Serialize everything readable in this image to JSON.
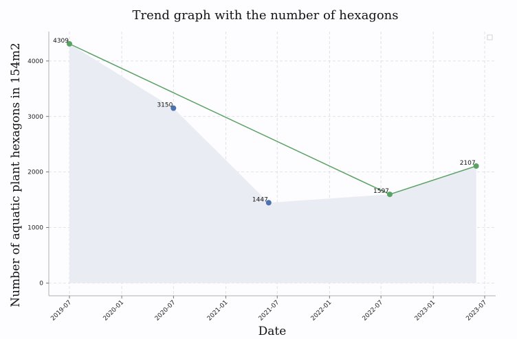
{
  "chart_data": {
    "type": "line",
    "title": "Trend graph with the number of hexagons",
    "xlabel": "Date",
    "ylabel": "Number of aquatic plant hexagons in 154m2",
    "x_tick_labels": [
      "2019-07",
      "2020-01",
      "2020-07",
      "2021-01",
      "2021-07",
      "2022-01",
      "2022-07",
      "2023-01",
      "2023-07"
    ],
    "y_ticks": [
      0,
      1000,
      2000,
      3000,
      4000
    ],
    "ylim": [
      -230,
      4530
    ],
    "grid": true,
    "legend": "top-right (empty)",
    "points": [
      {
        "date": "2019-07-01",
        "value": 4309,
        "label": "4309",
        "color": "#59a263"
      },
      {
        "date": "2020-07-01",
        "value": 3150,
        "label": "3150",
        "color": "#4c72b0"
      },
      {
        "date": "2021-06-01",
        "value": 1447,
        "label": "1447",
        "color": "#4c72b0"
      },
      {
        "date": "2022-08-01",
        "value": 1597,
        "label": "1597",
        "color": "#59a263"
      },
      {
        "date": "2023-06-01",
        "value": 2107,
        "label": "2107",
        "color": "#59a263"
      }
    ],
    "series": [
      {
        "type": "area",
        "color": "#e9ecf2",
        "values": [
          4309,
          3150,
          1447,
          1597,
          2107
        ]
      },
      {
        "type": "line",
        "color": "#59a263",
        "values": [
          4309,
          1597,
          2107
        ]
      }
    ]
  }
}
